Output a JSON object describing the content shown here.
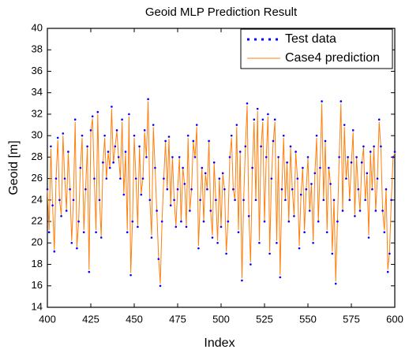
{
  "chart_data": {
    "type": "line",
    "title": "Geoid MLP Prediction Result",
    "x_label": "Index",
    "y_label": "Geoid [m]",
    "x": [
      400,
      401,
      402,
      403,
      404,
      405,
      406,
      407,
      408,
      409,
      410,
      411,
      412,
      413,
      414,
      415,
      416,
      417,
      418,
      419,
      420,
      421,
      422,
      423,
      424,
      425,
      426,
      427,
      428,
      429,
      430,
      431,
      432,
      433,
      434,
      435,
      436,
      437,
      438,
      439,
      440,
      441,
      442,
      443,
      444,
      445,
      446,
      447,
      448,
      449,
      450,
      451,
      452,
      453,
      454,
      455,
      456,
      457,
      458,
      459,
      460,
      461,
      462,
      463,
      464,
      465,
      466,
      467,
      468,
      469,
      470,
      471,
      472,
      473,
      474,
      475,
      476,
      477,
      478,
      479,
      480,
      481,
      482,
      483,
      484,
      485,
      486,
      487,
      488,
      489,
      490,
      491,
      492,
      493,
      494,
      495,
      496,
      497,
      498,
      499,
      500,
      501,
      502,
      503,
      504,
      505,
      506,
      507,
      508,
      509,
      510,
      511,
      512,
      513,
      514,
      515,
      516,
      517,
      518,
      519,
      520,
      521,
      522,
      523,
      524,
      525,
      526,
      527,
      528,
      529,
      530,
      531,
      532,
      533,
      534,
      535,
      536,
      537,
      538,
      539,
      540,
      541,
      542,
      543,
      544,
      545,
      546,
      547,
      548,
      549,
      550,
      551,
      552,
      553,
      554,
      555,
      556,
      557,
      558,
      559,
      560,
      561,
      562,
      563,
      564,
      565,
      566,
      567,
      568,
      569,
      570,
      571,
      572,
      573,
      574,
      575,
      576,
      577,
      578,
      579,
      580,
      581,
      582,
      583,
      584,
      585,
      586,
      587,
      588,
      589,
      590,
      591,
      592,
      593,
      594,
      595,
      596,
      597,
      598,
      599,
      600
    ],
    "series": [
      {
        "name": "Test data",
        "color": "#0000ff",
        "style": "dots",
        "values": [
          25,
          21,
          29,
          23.5,
          19.2,
          26,
          29.8,
          24,
          22.5,
          30.2,
          26,
          23,
          28.5,
          25,
          20,
          24,
          31.5,
          19.5,
          22,
          27,
          30,
          21,
          25,
          29,
          17.3,
          30.5,
          31.8,
          26,
          21,
          32.2,
          24,
          20.5,
          27.5,
          30,
          26,
          28.5,
          27,
          32.7,
          27.5,
          29,
          30.5,
          28,
          26,
          31.5,
          24.5,
          28.5,
          21,
          32,
          17,
          22,
          30,
          26,
          21.5,
          29,
          24.5,
          26,
          30.5,
          28,
          33.4,
          24,
          20.5,
          31,
          27,
          23,
          18.5,
          16,
          22,
          26,
          29.5,
          25,
          29.9,
          23.5,
          28,
          24,
          21.5,
          25,
          28,
          22,
          27,
          25.5,
          21.5,
          30,
          23,
          25,
          29.5,
          28,
          31,
          19.5,
          24,
          27,
          22,
          26.5,
          25,
          29.5,
          23,
          20.5,
          27.5,
          24,
          20,
          26,
          21.5,
          26.5,
          25,
          19,
          22,
          28,
          30,
          25,
          24,
          31,
          21,
          28.5,
          16.5,
          24,
          29,
          33,
          22.5,
          18,
          27,
          31.5,
          24,
          32.5,
          20,
          29,
          31.5,
          22,
          28,
          32,
          19,
          26,
          29.5,
          31.5,
          20,
          28,
          16.8,
          25,
          30,
          24,
          27.5,
          22,
          29,
          25,
          22.5,
          28.5,
          26,
          19.5,
          24.5,
          27,
          21,
          25,
          28,
          23,
          25.5,
          20,
          26.5,
          30,
          22,
          27,
          33.2,
          24,
          29.5,
          21,
          27,
          25.5,
          19,
          24,
          16.2,
          22,
          28,
          33.2,
          23,
          31,
          26,
          28,
          24,
          27.5,
          30.5,
          22.5,
          28,
          25,
          23,
          27.5,
          29,
          24,
          26.5,
          20.5,
          28.5,
          25,
          29,
          23,
          26,
          31.5,
          29,
          23,
          21,
          25,
          17.3,
          19,
          24,
          28,
          28.5
        ]
      },
      {
        "name": "Case4 prediction",
        "color": "#ff7f0e",
        "style": "line",
        "values": [
          25,
          21.2,
          28.8,
          23.5,
          19.3,
          26,
          29.6,
          24,
          22.6,
          30,
          26,
          23.1,
          28.4,
          25,
          20.2,
          24,
          31.3,
          19.6,
          22,
          27,
          29.8,
          21.2,
          25,
          28.9,
          17.5,
          30.4,
          31.6,
          26,
          21.2,
          32,
          24,
          20.6,
          27.4,
          29.8,
          26,
          28.4,
          27,
          32.5,
          27.4,
          29,
          30.4,
          28,
          26,
          31.3,
          24.6,
          28.4,
          21.2,
          31.8,
          17.2,
          22,
          29.8,
          26,
          21.6,
          28.9,
          24.6,
          26,
          30.3,
          28,
          33.2,
          24,
          20.7,
          30.8,
          27,
          23,
          18.7,
          16.2,
          22,
          26,
          29.4,
          25,
          29.7,
          23.5,
          28,
          24,
          21.6,
          25,
          27.9,
          22,
          27,
          25.5,
          21.6,
          29.8,
          23,
          25,
          29.4,
          28,
          30.8,
          19.7,
          24,
          27,
          22,
          26.4,
          25,
          29.4,
          23,
          20.7,
          27.4,
          24,
          20.2,
          26,
          21.6,
          26.4,
          25,
          19.2,
          22,
          27.9,
          29.8,
          25,
          24,
          30.8,
          21.2,
          28.4,
          16.7,
          24,
          28.9,
          32.8,
          22.6,
          18.2,
          27,
          31.3,
          24,
          32.3,
          20.2,
          28.9,
          31.3,
          22,
          27.9,
          31.8,
          19.2,
          26,
          29.4,
          31.3,
          20.2,
          28,
          17,
          25,
          29.8,
          24,
          27.4,
          22,
          28.9,
          25,
          22.6,
          28.4,
          26,
          19.7,
          24.5,
          27,
          21.2,
          25,
          27.9,
          23,
          25.5,
          20.2,
          26.4,
          29.8,
          22,
          27,
          33,
          24,
          29.4,
          21.2,
          27,
          25.5,
          19.2,
          24,
          16.4,
          22,
          27.9,
          33,
          23,
          30.8,
          26,
          28,
          24,
          27.4,
          30.3,
          22.6,
          28,
          25,
          23,
          27.4,
          28.9,
          24,
          26.4,
          20.7,
          28.4,
          25,
          28.9,
          23,
          26,
          31.3,
          28.9,
          23,
          21.2,
          25,
          17.5,
          19.2,
          24,
          27.9,
          28.4
        ]
      }
    ],
    "xlim": [
      400,
      600
    ],
    "xticks": [
      400,
      425,
      450,
      475,
      500,
      525,
      550,
      575,
      600
    ],
    "ylim": [
      14,
      40
    ],
    "yticks": [
      14,
      16,
      18,
      20,
      22,
      24,
      26,
      28,
      30,
      32,
      34,
      36,
      38,
      40
    ],
    "legend_position": "upper right"
  }
}
